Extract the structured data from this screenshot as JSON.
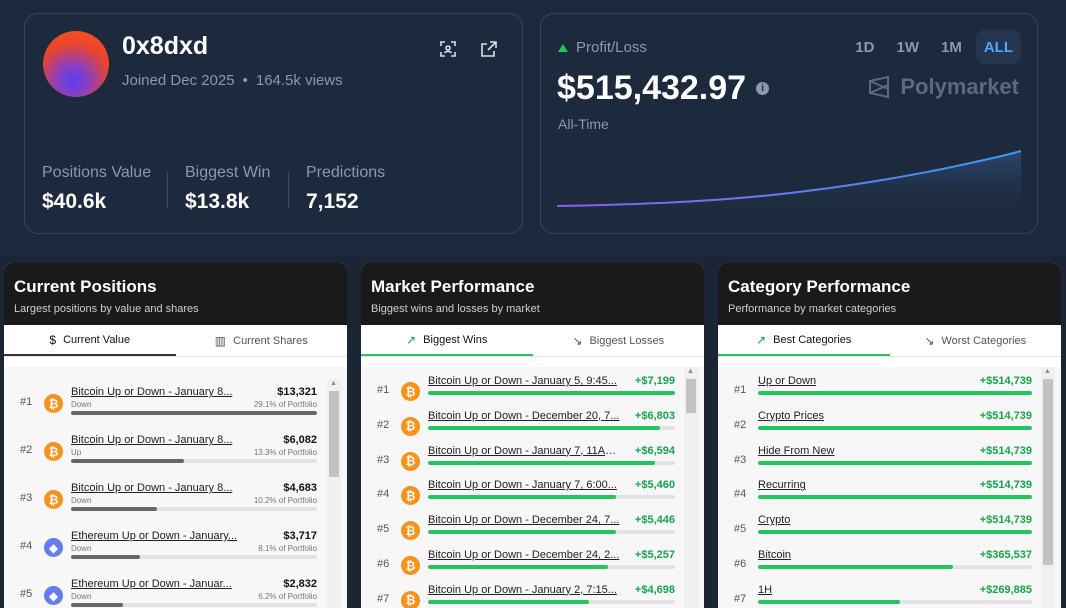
{
  "profile": {
    "username": "0x8dxd",
    "joined": "Joined Dec 2025",
    "dot": "•",
    "views": "164.5k views",
    "stats": [
      {
        "label": "Positions Value",
        "value": "$40.6k"
      },
      {
        "label": "Biggest Win",
        "value": "$13.8k"
      },
      {
        "label": "Predictions",
        "value": "7,152"
      }
    ]
  },
  "pnl": {
    "label": "Profit/Loss",
    "amount": "$515,432.97",
    "period": "All-Time",
    "brand": "Polymarket",
    "ranges": [
      "1D",
      "1W",
      "1M",
      "ALL"
    ],
    "active_range": "ALL",
    "series": [
      0,
      0.2,
      0.5,
      0.8,
      1.2,
      1.6,
      2.0,
      2.5,
      3.1,
      3.7,
      4.4,
      5.2,
      6.1,
      7.1,
      8.2,
      9.4,
      10.7,
      12.1,
      13.6,
      15.2,
      16.9,
      18.7,
      20.6,
      22.6,
      24.7,
      26.9,
      29.2,
      31.6,
      34.1,
      36.7,
      39.4,
      42.2,
      45.1,
      48.1,
      51.5
    ]
  },
  "panels": {
    "positions": {
      "title": "Current Positions",
      "subtitle": "Largest positions by value and shares",
      "tabs": [
        "Current Value",
        "Current Shares"
      ],
      "rows": [
        {
          "rank": "#1",
          "coin": "btc",
          "title": "Bitcoin Up or Down - January 8...",
          "amount": "$13,321",
          "side": "Down",
          "pct_label": "29.1% of Portfolio",
          "fill": 1.0
        },
        {
          "rank": "#2",
          "coin": "btc",
          "title": "Bitcoin Up or Down - January 8...",
          "amount": "$6,082",
          "side": "Up",
          "pct_label": "13.3% of Portfolio",
          "fill": 0.46
        },
        {
          "rank": "#3",
          "coin": "btc",
          "title": "Bitcoin Up or Down - January 8...",
          "amount": "$4,683",
          "side": "Down",
          "pct_label": "10.2% of Portfolio",
          "fill": 0.35
        },
        {
          "rank": "#4",
          "coin": "eth",
          "title": "Ethereum Up or Down - January...",
          "amount": "$3,717",
          "side": "Down",
          "pct_label": "8.1% of Portfolio",
          "fill": 0.28
        },
        {
          "rank": "#5",
          "coin": "eth",
          "title": "Ethereum Up or Down - Januar...",
          "amount": "$2,832",
          "side": "Down",
          "pct_label": "6.2% of Portfolio",
          "fill": 0.21
        }
      ]
    },
    "market": {
      "title": "Market Performance",
      "subtitle": "Biggest wins and losses by market",
      "tabs": [
        "Biggest Wins",
        "Biggest Losses"
      ],
      "rows": [
        {
          "rank": "#1",
          "title": "Bitcoin Up or Down - January 5, 9:45...",
          "amount": "+$7,199",
          "fill": 1.0
        },
        {
          "rank": "#2",
          "title": "Bitcoin Up or Down - December 20, 7...",
          "amount": "+$6,803",
          "fill": 0.94
        },
        {
          "rank": "#3",
          "title": "Bitcoin Up or Down - January 7, 11AM...",
          "amount": "+$6,594",
          "fill": 0.92
        },
        {
          "rank": "#4",
          "title": "Bitcoin Up or Down - January 7, 6:00...",
          "amount": "+$5,460",
          "fill": 0.76
        },
        {
          "rank": "#5",
          "title": "Bitcoin Up or Down - December 24, 7...",
          "amount": "+$5,446",
          "fill": 0.76
        },
        {
          "rank": "#6",
          "title": "Bitcoin Up or Down - December 24, 2...",
          "amount": "+$5,257",
          "fill": 0.73
        },
        {
          "rank": "#7",
          "title": "Bitcoin Up or Down - January 2, 7:15...",
          "amount": "+$4,698",
          "fill": 0.65
        }
      ]
    },
    "category": {
      "title": "Category Performance",
      "subtitle": "Performance by market categories",
      "tabs": [
        "Best Categories",
        "Worst Categories"
      ],
      "rows": [
        {
          "rank": "#1",
          "title": "Up or Down",
          "amount": "+$514,739",
          "fill": 1.0
        },
        {
          "rank": "#2",
          "title": "Crypto Prices",
          "amount": "+$514,739",
          "fill": 1.0
        },
        {
          "rank": "#3",
          "title": "Hide From New",
          "amount": "+$514,739",
          "fill": 1.0
        },
        {
          "rank": "#4",
          "title": "Recurring",
          "amount": "+$514,739",
          "fill": 1.0
        },
        {
          "rank": "#5",
          "title": "Crypto",
          "amount": "+$514,739",
          "fill": 1.0
        },
        {
          "rank": "#6",
          "title": "Bitcoin",
          "amount": "+$365,537",
          "fill": 0.71
        },
        {
          "rank": "#7",
          "title": "1H",
          "amount": "+$269,885",
          "fill": 0.52
        }
      ]
    }
  },
  "colors": {
    "green": "#22c55e",
    "gray_bar": "#666666",
    "accent": "#4aa8ff"
  }
}
